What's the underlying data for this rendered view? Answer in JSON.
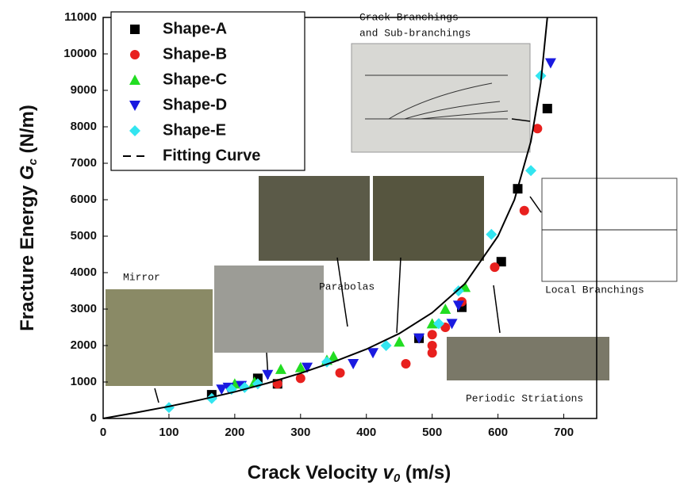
{
  "chart_data": {
    "type": "scatter",
    "x_label": [
      "Crack Velocity ",
      "v",
      "0",
      " (m/s)"
    ],
    "y_label": [
      "Fracture Energy ",
      "G",
      "c",
      " (N/m)"
    ],
    "xlim": [
      0,
      750
    ],
    "xticks": [
      0,
      100,
      200,
      300,
      400,
      500,
      600,
      700
    ],
    "ylim": [
      0,
      11000
    ],
    "yticks": [
      0,
      1000,
      2000,
      3000,
      4000,
      5000,
      6000,
      7000,
      8000,
      9000,
      10000,
      11000
    ],
    "annotations": [
      "Crack Branchings",
      "and Sub-branchings",
      "Mirror",
      "Parabolas",
      "Local Branchings",
      "Periodic Striations"
    ],
    "series": [
      {
        "name": "Shape-A",
        "marker": "square",
        "color": "#000000",
        "x": [
          165,
          235,
          265,
          480,
          545,
          605,
          630,
          675
        ],
        "values": [
          650,
          1100,
          950,
          2200,
          3050,
          4300,
          6300,
          8500
        ]
      },
      {
        "name": "Shape-B",
        "marker": "circle",
        "color": "#e8201e",
        "x": [
          265,
          300,
          360,
          460,
          500,
          500,
          500,
          520,
          545,
          595,
          640,
          660
        ],
        "values": [
          950,
          1100,
          1250,
          1500,
          2300,
          2000,
          1800,
          2500,
          3200,
          4150,
          5700,
          7950
        ]
      },
      {
        "name": "Shape-C",
        "marker": "triangle-up",
        "color": "#22dd22",
        "x": [
          200,
          230,
          270,
          300,
          340,
          350,
          450,
          500,
          520,
          550
        ],
        "values": [
          950,
          1000,
          1350,
          1400,
          1600,
          1700,
          2100,
          2600,
          3000,
          3600
        ]
      },
      {
        "name": "Shape-D",
        "marker": "triangle-down",
        "color": "#1a1ae0",
        "x": [
          180,
          190,
          210,
          250,
          310,
          380,
          410,
          480,
          530,
          540,
          680
        ],
        "values": [
          800,
          850,
          900,
          1200,
          1400,
          1500,
          1800,
          2200,
          2600,
          3100,
          9750
        ]
      },
      {
        "name": "Shape-E",
        "marker": "diamond",
        "color": "#33e5f0",
        "x": [
          100,
          165,
          195,
          215,
          235,
          340,
          430,
          510,
          540,
          590,
          650,
          665
        ],
        "values": [
          300,
          550,
          800,
          850,
          950,
          1550,
          2000,
          2600,
          3500,
          5050,
          6800,
          9400
        ]
      },
      {
        "name": "Fitting Curve",
        "marker": "line",
        "color": "#000000",
        "x": [
          0,
          50,
          100,
          150,
          200,
          250,
          300,
          350,
          400,
          450,
          500,
          550,
          600,
          625,
          650,
          665,
          675
        ],
        "values": [
          0,
          160,
          330,
          520,
          730,
          970,
          1240,
          1550,
          1900,
          2330,
          2900,
          3700,
          5000,
          6000,
          7600,
          9200,
          11000
        ]
      }
    ]
  }
}
